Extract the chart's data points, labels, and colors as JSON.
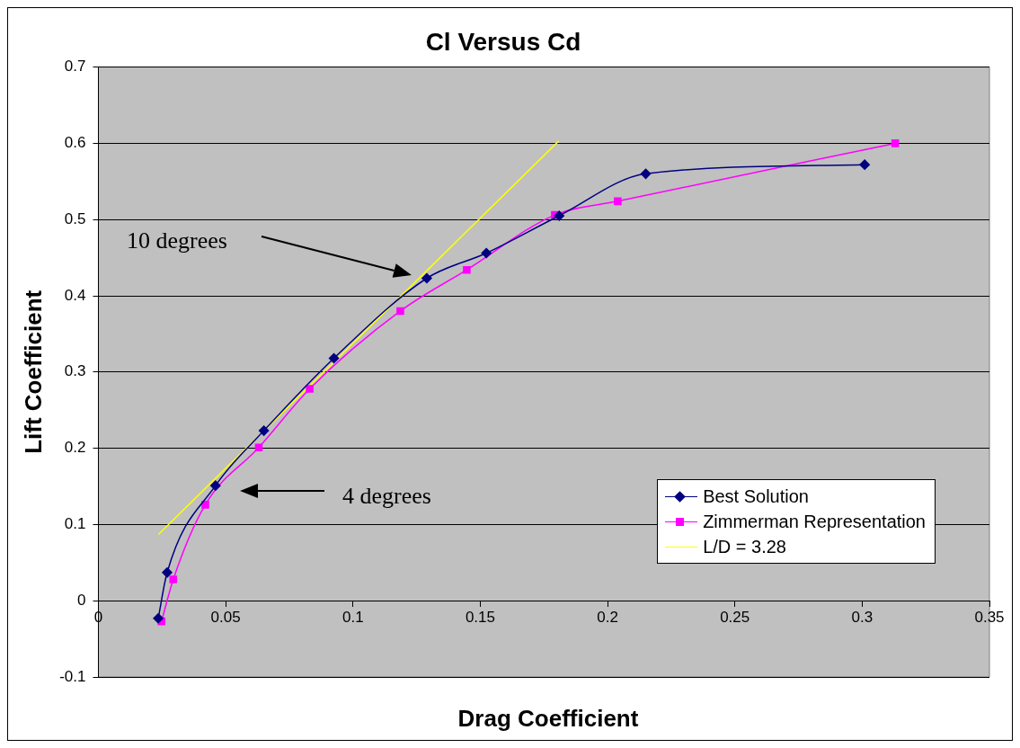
{
  "chart_data": {
    "type": "line",
    "title": "Cl Versus Cd",
    "xlabel": "Drag Coefficient",
    "ylabel": "Lift Coefficient",
    "series": [
      {
        "name": "Best Solution",
        "color": "#000080",
        "marker": "diamond",
        "x": [
          0.0235,
          0.027,
          0.046,
          0.065,
          0.0925,
          0.129,
          0.1524,
          0.181,
          0.215,
          0.301
        ],
        "values": [
          -0.023,
          0.037,
          0.151,
          0.223,
          0.318,
          0.423,
          0.456,
          0.505,
          0.56,
          0.572
        ]
      },
      {
        "name": "Zimmerman Representation",
        "color": "#ff00ff",
        "marker": "square",
        "x": [
          0.0248,
          0.0294,
          0.042,
          0.063,
          0.083,
          0.1186,
          0.1447,
          0.1793,
          0.204,
          0.313
        ],
        "values": [
          -0.027,
          0.028,
          0.126,
          0.201,
          0.278,
          0.38,
          0.434,
          0.506,
          0.524,
          0.6
        ]
      },
      {
        "name": "L/D = 3.28",
        "color": "#ffff00",
        "marker": "none",
        "x": [
          0.0236,
          0.1808
        ],
        "values": [
          0.087,
          0.603
        ]
      }
    ],
    "xlim": [
      0,
      0.35
    ],
    "xticks": [
      0,
      0.05,
      0.1,
      0.15,
      0.2,
      0.25,
      0.3,
      0.35
    ],
    "ylim": [
      -0.1,
      0.7
    ],
    "yticks": [
      -0.1,
      0,
      0.1,
      0.2,
      0.3,
      0.4,
      0.5,
      0.6,
      0.7
    ],
    "grid": "y",
    "legend": "bottom right",
    "annotations": [
      "10 degrees",
      "4 degrees"
    ]
  }
}
